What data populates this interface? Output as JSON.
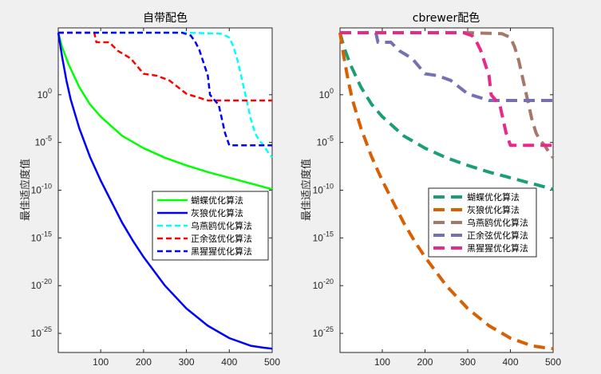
{
  "chart_data": [
    {
      "type": "line",
      "title": "自带配色",
      "xlabel": "",
      "ylabel": "最佳适应度值",
      "xlim": [
        1,
        500
      ],
      "ylim_log10": [
        -27,
        7
      ],
      "yscale": "log",
      "xticks": [
        "100",
        "200",
        "300",
        "400",
        "500"
      ],
      "xtick_values": [
        100,
        200,
        300,
        400,
        500
      ],
      "yticks": [
        "10^0",
        "10^-5",
        "10^-10",
        "10^-15",
        "10^-20",
        "10^-25"
      ],
      "ytick_exponents": [
        0,
        -5,
        -10,
        -15,
        -20,
        -25
      ],
      "legend_position": "center-right",
      "series": [
        {
          "name": "蝴蝶优化算法",
          "color": "#00ff00",
          "style": "solid",
          "x": [
            1,
            10,
            25,
            50,
            75,
            100,
            150,
            200,
            250,
            300,
            350,
            400,
            450,
            500
          ],
          "log10_y": [
            6.5,
            5.0,
            3.2,
            0.8,
            -1.0,
            -2.3,
            -4.3,
            -5.6,
            -6.6,
            -7.4,
            -8.1,
            -8.7,
            -9.3,
            -9.9
          ]
        },
        {
          "name": "灰狼优化算法",
          "color": "#0000ff",
          "style": "solid",
          "x": [
            1,
            10,
            20,
            30,
            50,
            75,
            100,
            125,
            150,
            175,
            200,
            250,
            300,
            350,
            400,
            450,
            480,
            500
          ],
          "log10_y": [
            6.5,
            4.0,
            1.5,
            -0.5,
            -3.5,
            -6.5,
            -9.0,
            -11.2,
            -13.4,
            -15.3,
            -17.0,
            -20.0,
            -22.4,
            -24.2,
            -25.5,
            -26.3,
            -26.5,
            -26.6
          ]
        },
        {
          "name": "乌燕鸥优化算法",
          "color": "#00ffff",
          "style": "dashed",
          "x": [
            1,
            100,
            200,
            300,
            380,
            400,
            410,
            420,
            430,
            440,
            450,
            460,
            470,
            480,
            490,
            500
          ],
          "log10_y": [
            6.5,
            6.5,
            6.5,
            6.5,
            6.4,
            6.0,
            5.0,
            3.5,
            1.5,
            -0.5,
            -2.5,
            -4.0,
            -4.8,
            -5.3,
            -6.0,
            -6.6
          ]
        },
        {
          "name": "正余弦优化算法",
          "color": "#ff0000",
          "style": "dashed",
          "x": [
            1,
            85,
            90,
            120,
            140,
            170,
            200,
            230,
            260,
            300,
            350,
            380,
            400,
            500
          ],
          "log10_y": [
            6.5,
            6.5,
            5.5,
            5.5,
            4.6,
            3.8,
            2.2,
            2.0,
            1.5,
            0.1,
            -0.6,
            -0.6,
            -0.6,
            -0.6
          ]
        },
        {
          "name": "黑猩猩优化算法",
          "color": "#0000ff",
          "style": "dashed",
          "x": [
            1,
            100,
            200,
            290,
            310,
            320,
            330,
            350,
            355,
            370,
            375,
            390,
            400,
            420,
            440,
            500
          ],
          "log10_y": [
            6.5,
            6.5,
            6.5,
            6.5,
            6.2,
            5.6,
            4.7,
            2.0,
            0.0,
            -0.8,
            -1.0,
            -4.0,
            -5.3,
            -5.3,
            -5.3,
            -5.3
          ]
        }
      ]
    },
    {
      "type": "line",
      "title": "cbrewer配色",
      "xlabel": "",
      "ylabel": "最佳适应度值",
      "xlim": [
        1,
        500
      ],
      "ylim_log10": [
        -27,
        7
      ],
      "yscale": "log",
      "xticks": [
        "100",
        "200",
        "300",
        "400",
        "500"
      ],
      "xtick_values": [
        100,
        200,
        300,
        400,
        500
      ],
      "yticks": [
        "10^0",
        "10^-5",
        "10^-10",
        "10^-15",
        "10^-20",
        "10^-25"
      ],
      "ytick_exponents": [
        0,
        -5,
        -10,
        -15,
        -20,
        -25
      ],
      "legend_position": "center-right",
      "series": [
        {
          "name": "蝴蝶优化算法",
          "color": "#1b9e77",
          "style": "dashed",
          "x": [
            1,
            10,
            25,
            50,
            75,
            100,
            150,
            200,
            250,
            300,
            350,
            400,
            450,
            500
          ],
          "log10_y": [
            6.5,
            5.0,
            3.2,
            0.8,
            -1.0,
            -2.3,
            -4.3,
            -5.6,
            -6.6,
            -7.4,
            -8.1,
            -8.7,
            -9.3,
            -9.9
          ]
        },
        {
          "name": "灰狼优化算法",
          "color": "#d95f02",
          "style": "dashed",
          "x": [
            1,
            10,
            20,
            30,
            50,
            75,
            100,
            125,
            150,
            175,
            200,
            250,
            300,
            350,
            400,
            450,
            480,
            500
          ],
          "log10_y": [
            6.5,
            4.0,
            1.5,
            -0.5,
            -3.5,
            -6.5,
            -9.0,
            -11.2,
            -13.4,
            -15.3,
            -17.0,
            -20.0,
            -22.4,
            -24.2,
            -25.5,
            -26.3,
            -26.5,
            -26.6
          ]
        },
        {
          "name": "乌燕鸥优化算法",
          "color": "#a6786a",
          "style": "dashed",
          "x": [
            1,
            100,
            200,
            300,
            380,
            400,
            410,
            420,
            430,
            440,
            450,
            460,
            470,
            480,
            490,
            500
          ],
          "log10_y": [
            6.5,
            6.5,
            6.5,
            6.5,
            6.4,
            6.0,
            5.0,
            3.5,
            1.5,
            -0.5,
            -2.5,
            -4.0,
            -4.8,
            -5.3,
            -6.0,
            -6.6
          ]
        },
        {
          "name": "正余弦优化算法",
          "color": "#7570b3",
          "style": "dashed",
          "x": [
            1,
            85,
            90,
            120,
            140,
            170,
            200,
            230,
            260,
            300,
            350,
            380,
            400,
            500
          ],
          "log10_y": [
            6.5,
            6.5,
            5.5,
            5.5,
            4.6,
            3.8,
            2.2,
            2.0,
            1.5,
            0.1,
            -0.6,
            -0.6,
            -0.6,
            -0.6
          ]
        },
        {
          "name": "黑猩猩优化算法",
          "color": "#e7298a",
          "style": "dashed",
          "x": [
            1,
            100,
            200,
            290,
            310,
            320,
            330,
            350,
            355,
            370,
            375,
            390,
            400,
            420,
            440,
            500
          ],
          "log10_y": [
            6.5,
            6.5,
            6.5,
            6.5,
            6.2,
            5.6,
            4.7,
            2.0,
            0.0,
            -0.8,
            -1.0,
            -4.0,
            -5.3,
            -5.3,
            -5.3,
            -5.3
          ]
        }
      ]
    }
  ]
}
